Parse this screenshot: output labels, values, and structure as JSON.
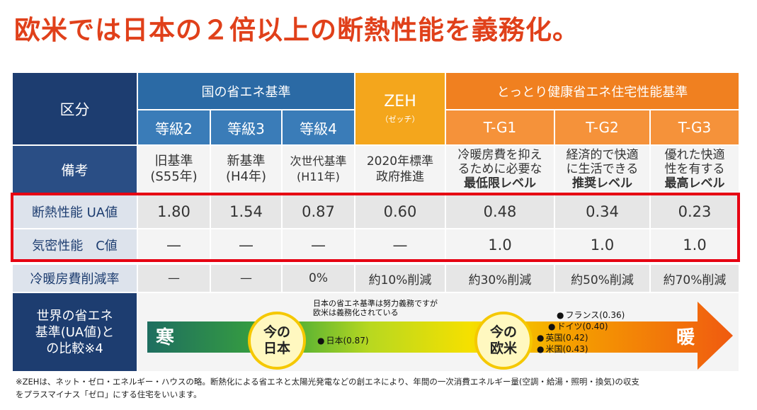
{
  "title": "欧米では日本の２倍以上の断熱性能を義務化。",
  "headers": {
    "kubun": "区分",
    "kuni": "国の省エネ基準",
    "zeh": "ZEH",
    "zeh_sub": "（ゼッチ）",
    "tottori": "とっとり健康省エネ住宅性能基準",
    "cols": [
      "等級2",
      "等級3",
      "等級4",
      "T-G1",
      "T-G2",
      "T-G3"
    ]
  },
  "biko": {
    "label": "備考",
    "c1a": "旧基準",
    "c1b": "(S55年)",
    "c2a": "新基準",
    "c2b": "(H4年)",
    "c3a": "次世代基準",
    "c3b": "(H11年)",
    "c4a": "2020年標準",
    "c4b": "政府推進",
    "c5a": "冷暖房費を抑え",
    "c5b": "るために必要な",
    "c5c": "最低限レベル",
    "c6a": "経済的で快適",
    "c6b": "に生活できる",
    "c6c": "推奨レベル",
    "c7a": "優れた快適",
    "c7b": "性を有する",
    "c7c": "最高レベル"
  },
  "ua": {
    "label": "断熱性能 UA値",
    "values": [
      "1.80",
      "1.54",
      "0.87",
      "0.60",
      "0.48",
      "0.34",
      "0.23"
    ]
  },
  "c": {
    "label": "気密性能　C値",
    "values": [
      "—",
      "—",
      "—",
      "—",
      "1.0",
      "1.0",
      "1.0"
    ]
  },
  "reduction": {
    "label": "冷暖房費削減率",
    "values": [
      "—",
      "—",
      "0%",
      "約10%削減",
      "約30%削減",
      "約50%削減",
      "約70%削減"
    ]
  },
  "world": {
    "label1": "世界の省エネ",
    "label2": "基準(UA値)と",
    "label3": "の比較※4",
    "cold": "寒",
    "warm": "暖",
    "japan_circle1": "今の",
    "japan_circle2": "日本",
    "west_circle1": "今の",
    "west_circle2": "欧米",
    "note1": "日本の省エネ基準は努力義務ですが",
    "note2": "欧米は義務化されている",
    "japan_dot": "日本(0.87)",
    "france": "フランス(0.36)",
    "germany": "ドイツ(0.40)",
    "uk": "英国(0.42)",
    "us": "米国(0.43)"
  },
  "footnote1": "※ZEHは、ネット・ゼロ・エネルギー・ハウスの略。断熱化による省エネと太陽光発電などの創エネにより、年間の一次消費エネルギー量(空調・給湯・照明・換気)の収支",
  "footnote2": "をプラスマイナス「ゼロ」にする住宅をいいます。",
  "colors": {
    "title": "#e0401a",
    "navy": "#1d3d70",
    "blue": "#2b6aa5",
    "zeh": "#f4a61c",
    "orange": "#f08020",
    "highlight": "#e60012"
  }
}
